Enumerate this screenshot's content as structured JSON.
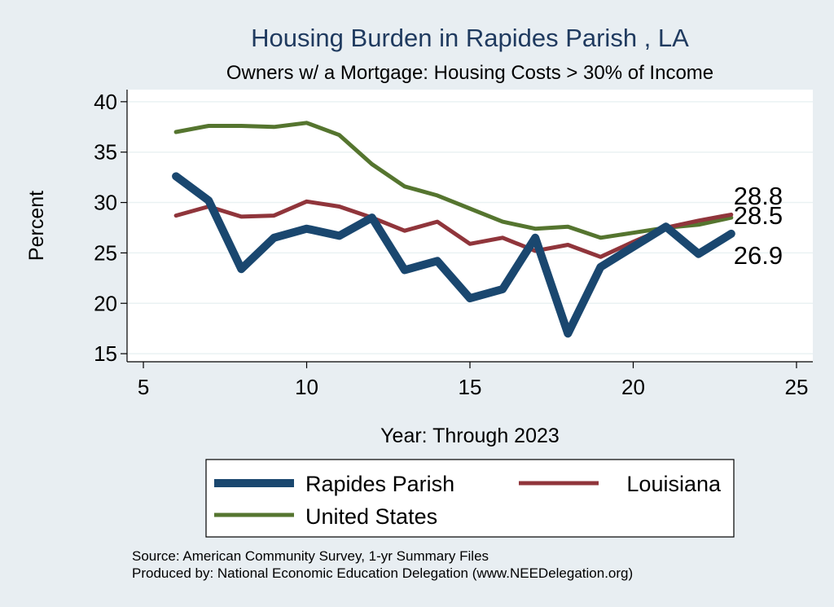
{
  "chart_data": {
    "type": "line",
    "title": "Housing Burden in Rapides Parish , LA",
    "subtitle": "Owners w/ a Mortgage: Housing Costs > 30% of Income",
    "xlabel": "Year: Through 2023",
    "ylabel": "Percent",
    "xlim": [
      4.5,
      25.5
    ],
    "ylim": [
      14.2,
      41.2
    ],
    "xticks": [
      5,
      10,
      15,
      20,
      25
    ],
    "yticks": [
      15,
      20,
      25,
      30,
      35,
      40
    ],
    "grid": true,
    "legend_position": "bottom",
    "x": [
      6,
      7,
      8,
      9,
      10,
      11,
      12,
      13,
      14,
      15,
      16,
      17,
      18,
      19,
      20,
      21,
      22,
      23
    ],
    "series": [
      {
        "name": "Rapides Parish",
        "color": "#1a476f",
        "end_label": "26.9",
        "values": [
          32.6,
          30.2,
          23.4,
          26.5,
          27.4,
          26.7,
          28.5,
          23.3,
          24.2,
          20.5,
          21.4,
          26.5,
          17.0,
          23.6,
          25.6,
          27.6,
          24.9,
          26.9
        ]
      },
      {
        "name": "Louisiana",
        "color": "#90353b",
        "end_label": "28.8",
        "values": [
          28.7,
          29.6,
          28.6,
          28.7,
          30.1,
          29.6,
          28.5,
          27.2,
          28.1,
          25.9,
          26.5,
          25.2,
          25.8,
          24.6,
          26.1,
          27.5,
          28.2,
          28.8
        ]
      },
      {
        "name": "United States",
        "color": "#55752f",
        "end_label": "28.5",
        "values": [
          37.0,
          37.6,
          37.6,
          37.5,
          37.9,
          36.7,
          33.8,
          31.6,
          30.7,
          29.4,
          28.1,
          27.4,
          27.6,
          26.5,
          27.0,
          27.5,
          27.8,
          28.5
        ]
      }
    ],
    "notes": [
      "Source: American Community Survey, 1-yr Summary Files",
      "Produced by: National Economic Education Delegation (www.NEEDelegation.org)"
    ]
  }
}
